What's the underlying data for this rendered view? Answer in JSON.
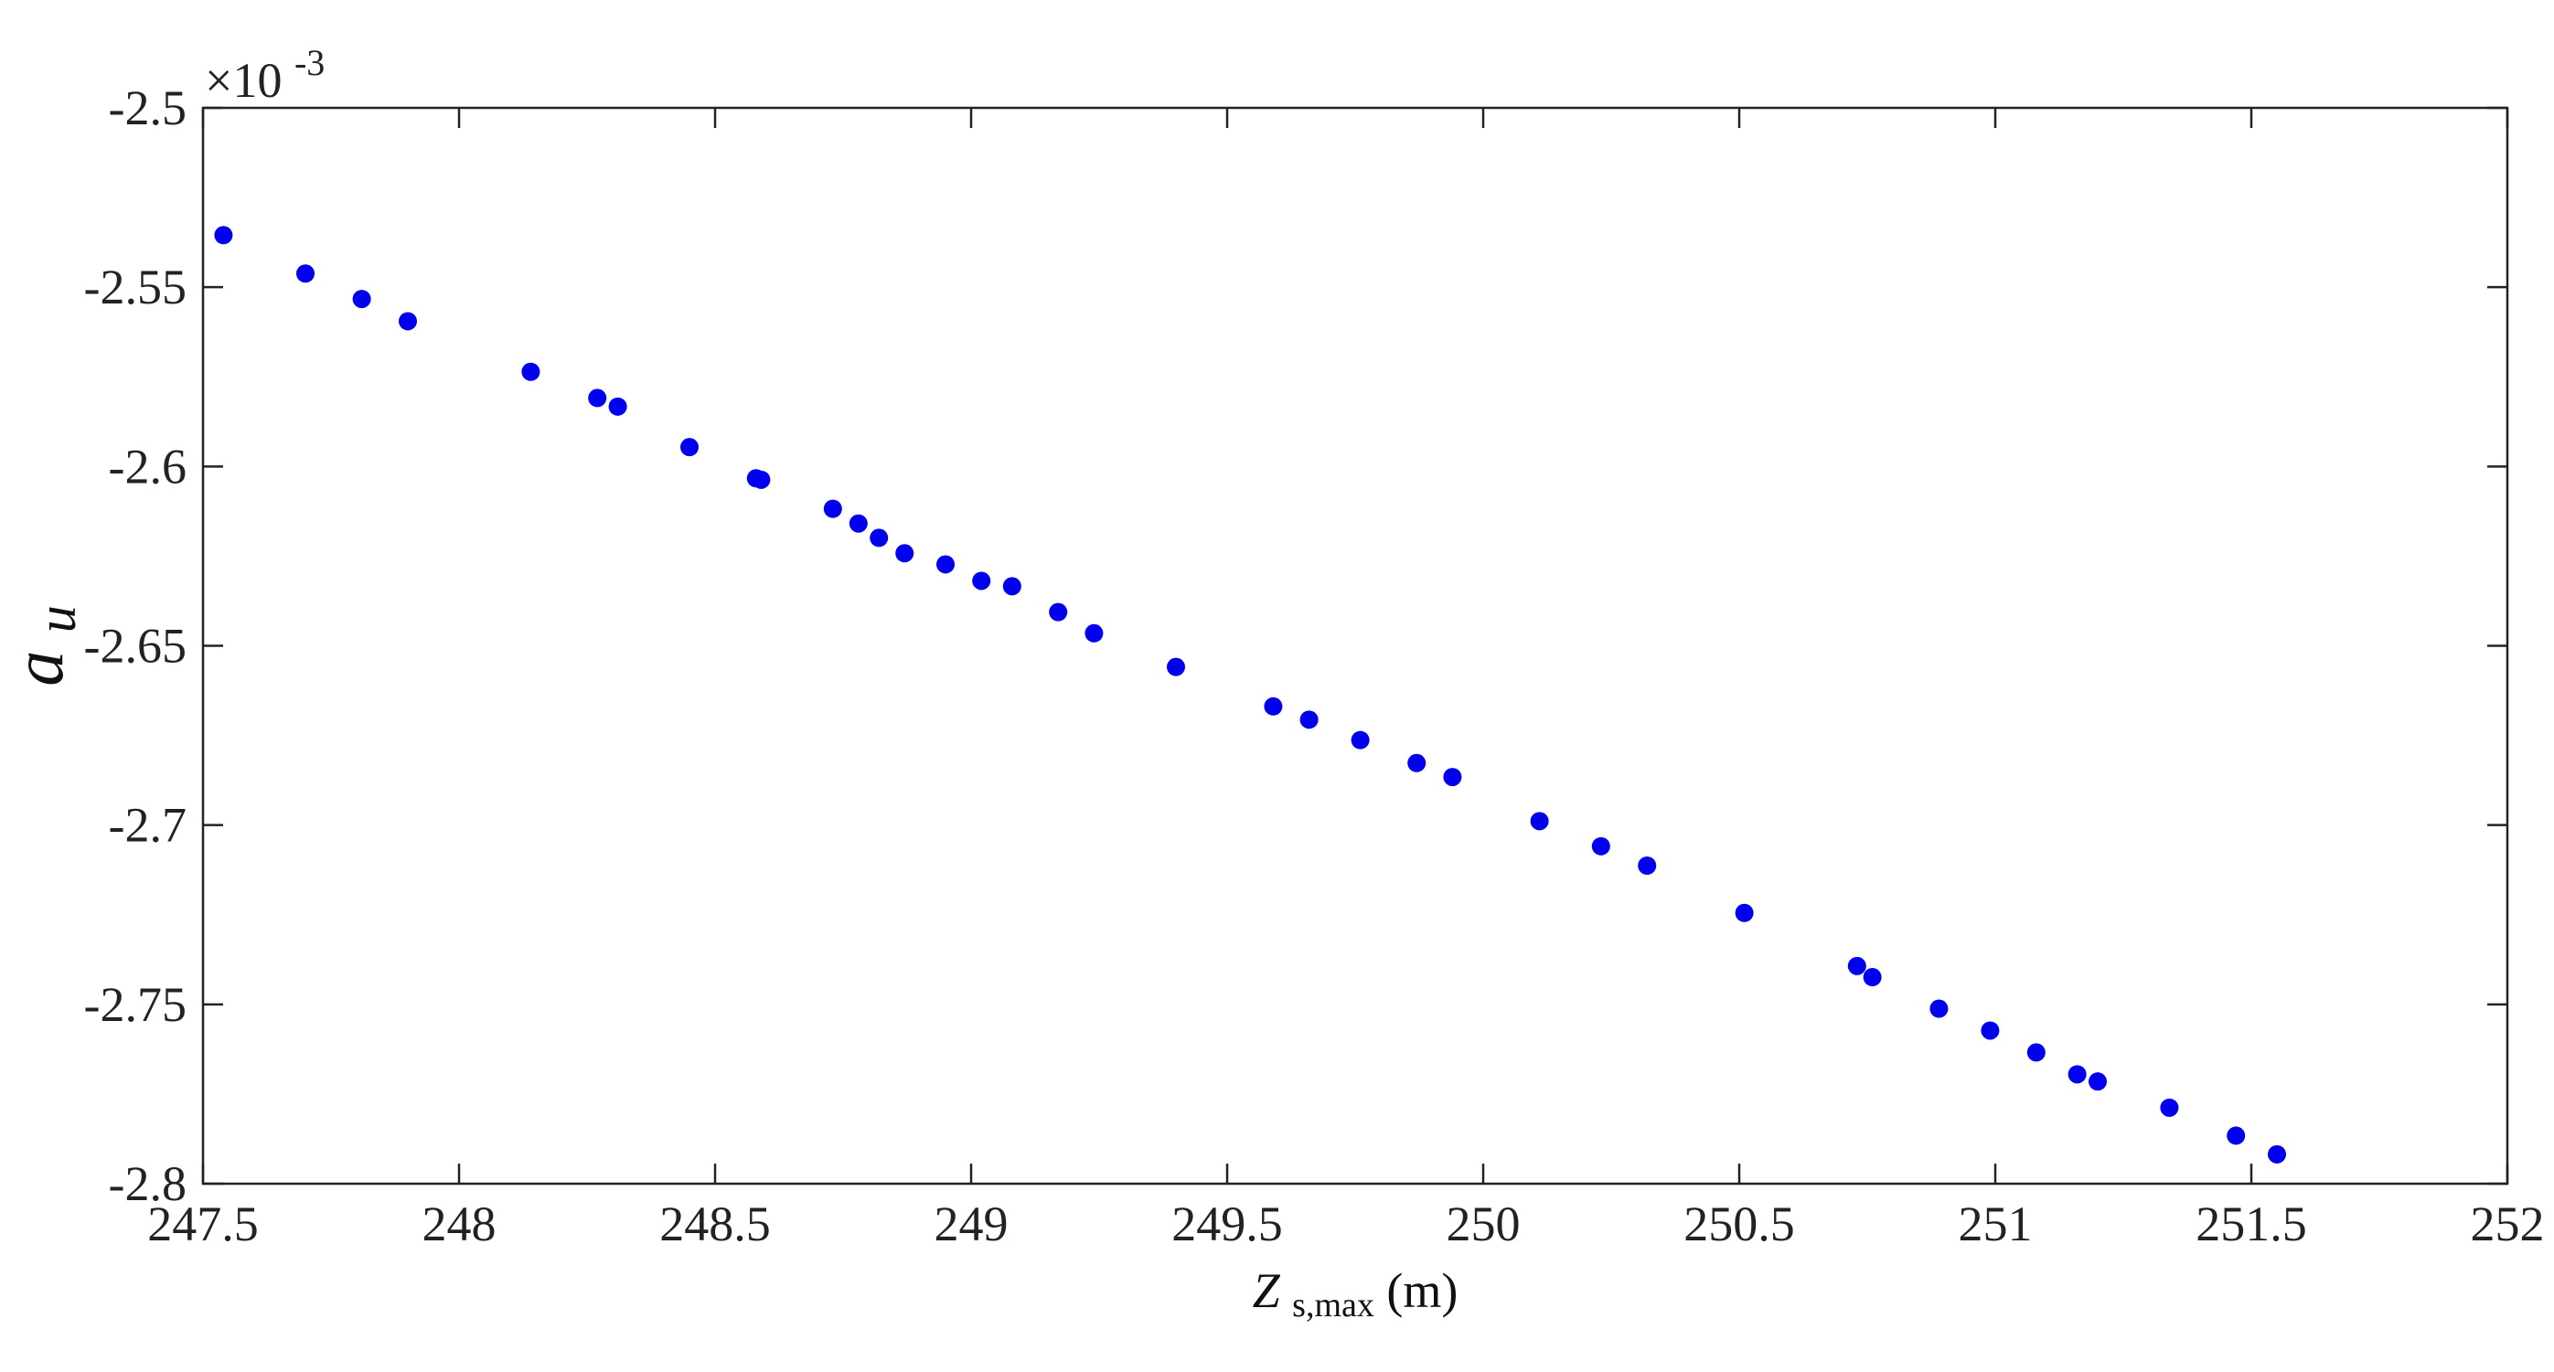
{
  "chart_data": {
    "type": "scatter",
    "title": "",
    "xlabel": {
      "main": "Z",
      "sub": "s,max",
      "suffix": " (m)"
    },
    "ylabel": {
      "main": "a",
      "sub": "u"
    },
    "xlim": [
      247.5,
      252
    ],
    "ylim": [
      -2.8,
      -2.5
    ],
    "y_exponent_label": "×10",
    "y_exponent_power": "-3",
    "xticks": [
      247.5,
      248,
      248.5,
      249,
      249.5,
      250,
      250.5,
      251,
      251.5,
      252
    ],
    "xtick_labels": [
      "247.5",
      "248",
      "248.5",
      "249",
      "249.5",
      "250",
      "250.5",
      "251",
      "251.5",
      "252"
    ],
    "yticks": [
      -2.5,
      -2.55,
      -2.6,
      -2.65,
      -2.7,
      -2.75,
      -2.8
    ],
    "ytick_labels": [
      "-2.5",
      "-2.55",
      "-2.6",
      "-2.65",
      "-2.7",
      "-2.75",
      "-2.8"
    ],
    "grid": false,
    "marker_color": "#0000ee",
    "series": [
      {
        "x": [
          247.54,
          247.7,
          247.81,
          247.9,
          248.14,
          248.27,
          248.31,
          248.45,
          248.58,
          248.59,
          248.73,
          248.78,
          248.82,
          248.87,
          248.95,
          249.02,
          249.08,
          249.17,
          249.24,
          249.4,
          249.59,
          249.66,
          249.76,
          249.87,
          249.94,
          250.11,
          250.23,
          250.32,
          250.51,
          250.73,
          250.76,
          250.89,
          250.99,
          251.08,
          251.16,
          251.2,
          251.34,
          251.47,
          251.55
        ],
        "y": [
          -2.5355,
          -2.5462,
          -2.5533,
          -2.5595,
          -2.5736,
          -2.5809,
          -2.5833,
          -2.5946,
          -2.6033,
          -2.6037,
          -2.6118,
          -2.6159,
          -2.6199,
          -2.6242,
          -2.6273,
          -2.6319,
          -2.6334,
          -2.6406,
          -2.6465,
          -2.6559,
          -2.6669,
          -2.6706,
          -2.6763,
          -2.6827,
          -2.6866,
          -2.6989,
          -2.7059,
          -2.7113,
          -2.7245,
          -2.7393,
          -2.7424,
          -2.7512,
          -2.7573,
          -2.7634,
          -2.7695,
          -2.7715,
          -2.7788,
          -2.7866,
          -2.7918
        ]
      }
    ]
  }
}
